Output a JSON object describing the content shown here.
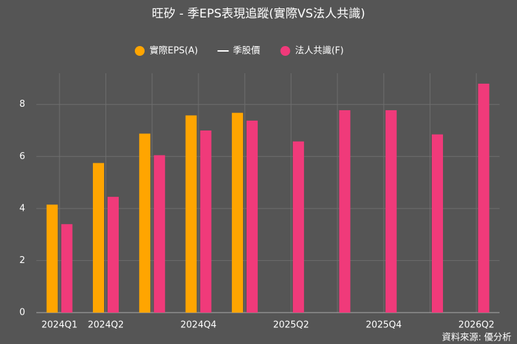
{
  "chart_data": {
    "type": "bar",
    "title": "旺矽 - 季EPS表現追蹤(實際VS法人共識)",
    "categories": [
      "2024Q1",
      "2024Q2",
      null,
      "2024Q4",
      null,
      "2025Q2",
      null,
      "2025Q4",
      null,
      "2026Q2"
    ],
    "series": [
      {
        "name": "實際EPS(A)",
        "color": "#ffa500",
        "values": [
          4.15,
          5.75,
          6.88,
          7.58,
          7.68,
          null,
          null,
          null,
          null,
          null
        ]
      },
      {
        "name": "季股價",
        "color": "#ffffff",
        "kind": "line",
        "values": [
          null,
          null,
          null,
          null,
          null,
          null,
          null,
          null,
          null,
          null
        ]
      },
      {
        "name": "法人共識(F)",
        "color": "#f03a7a",
        "values": [
          3.4,
          4.45,
          6.05,
          7.0,
          7.38,
          6.58,
          7.78,
          7.78,
          6.85,
          8.8
        ]
      }
    ],
    "ylim": [
      0,
      9.2
    ],
    "yticks": [
      0,
      2,
      4,
      6,
      8
    ],
    "grid": true,
    "source": "資料來源: 優分析"
  }
}
